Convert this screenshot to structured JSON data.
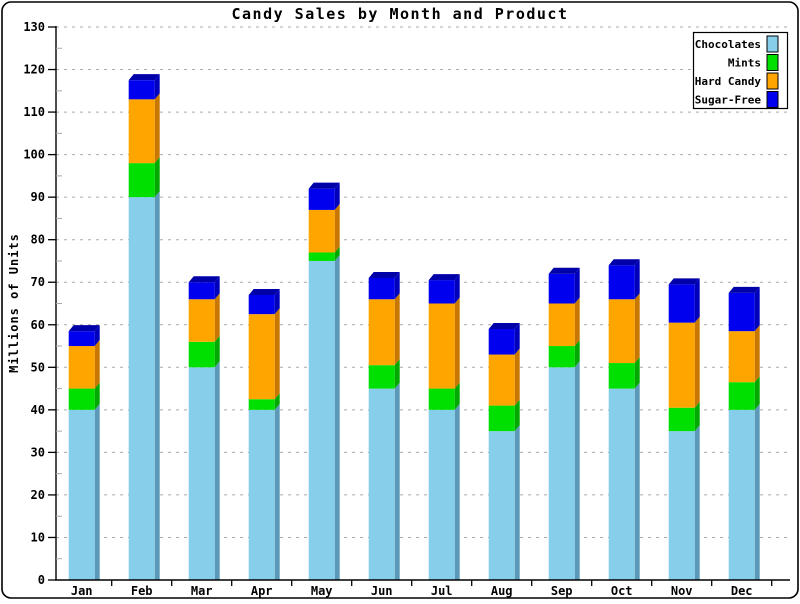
{
  "chart_data": {
    "type": "bar",
    "stacked": true,
    "style": "3d",
    "title": "Candy Sales by Month and Product",
    "xlabel": "",
    "ylabel": "Millions of Units",
    "ylim": [
      0,
      130
    ],
    "grid": "dashed horizontal lines at every major tick",
    "legend_position": "top-right",
    "categories": [
      "Jan",
      "Feb",
      "Mar",
      "Apr",
      "May",
      "Jun",
      "Jul",
      "Aug",
      "Sep",
      "Oct",
      "Nov",
      "Dec"
    ],
    "y_axis": {
      "min": 0,
      "max": 130,
      "major_step": 10,
      "minor_step": 5,
      "tick_labels": [
        "0",
        "10",
        "20",
        "30",
        "40",
        "50",
        "60",
        "70",
        "80",
        "90",
        "100",
        "110",
        "120",
        "130"
      ]
    },
    "series": [
      {
        "name": "Chocolates",
        "color": "#87CEEB",
        "side_color": "#5B99B8",
        "values": [
          40,
          90,
          50,
          40,
          75,
          45,
          40,
          35,
          50,
          45,
          35,
          40
        ]
      },
      {
        "name": "Mints",
        "color": "#00E000",
        "side_color": "#00A800",
        "values": [
          5,
          8,
          6,
          2.5,
          2,
          5.5,
          5,
          6,
          5,
          6,
          5.5,
          6.5
        ]
      },
      {
        "name": "Hard Candy",
        "color": "#FFA500",
        "side_color": "#C87800",
        "values": [
          10,
          15,
          10,
          20,
          10,
          15.5,
          20,
          12,
          10,
          15,
          20,
          12
        ]
      },
      {
        "name": "Sugar-Free",
        "color": "#0000EE",
        "side_color": "#0000BB",
        "top_color": "#0000A8",
        "values": [
          3.5,
          4.5,
          4,
          4.5,
          5,
          5,
          5.5,
          6,
          7,
          8,
          9,
          9
        ]
      }
    ],
    "totals": [
      58.5,
      117.5,
      70,
      67,
      92,
      71,
      70.5,
      59,
      72,
      74,
      69.5,
      67.5
    ]
  }
}
